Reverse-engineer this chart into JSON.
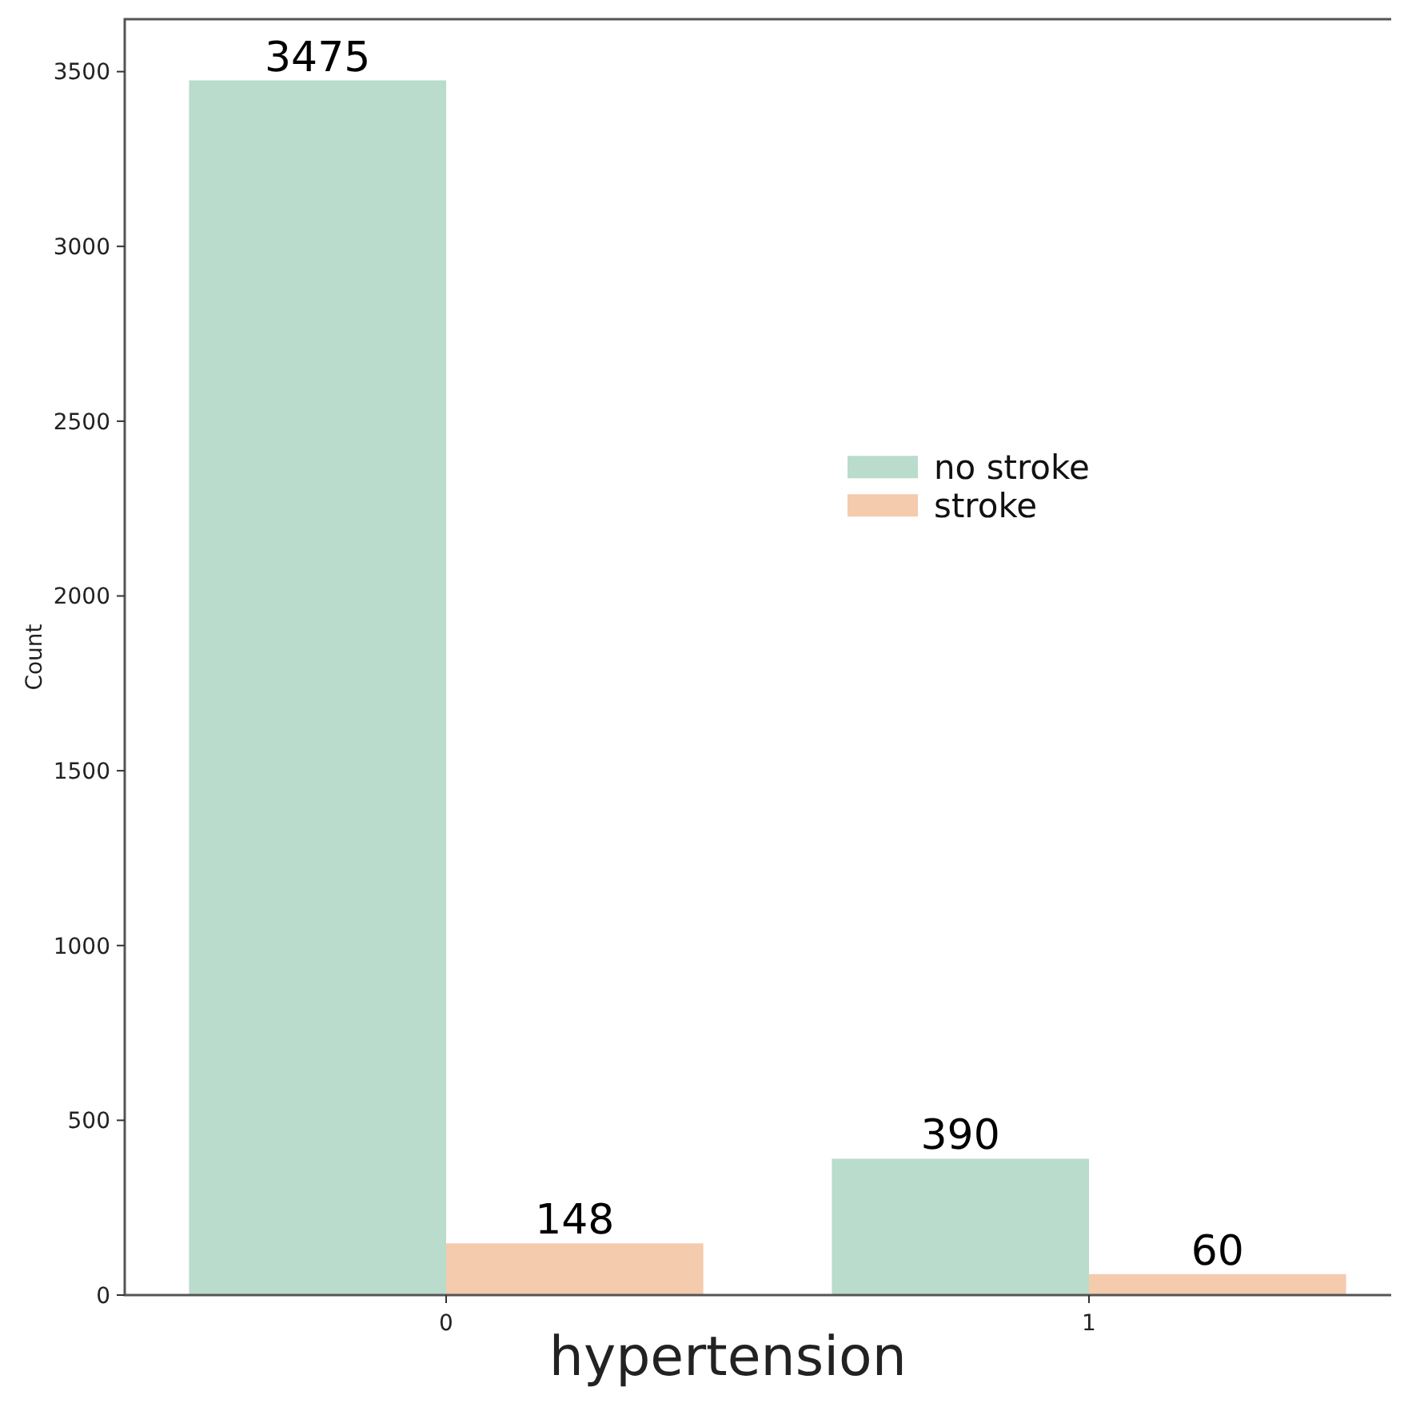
{
  "chart_data": {
    "type": "bar",
    "xlabel": "hypertension",
    "ylabel": "Count",
    "categories": [
      "0",
      "1"
    ],
    "series": [
      {
        "name": "no stroke",
        "color": "#b9dccc",
        "values": [
          3475,
          390
        ]
      },
      {
        "name": "stroke",
        "color": "#f5cbad",
        "values": [
          148,
          60
        ]
      }
    ],
    "ylim": [
      0,
      3650
    ],
    "yticks": [
      0,
      500,
      1000,
      1500,
      2000,
      2500,
      3000,
      3500
    ],
    "data_labels": true,
    "legend": "right",
    "grid": false
  }
}
